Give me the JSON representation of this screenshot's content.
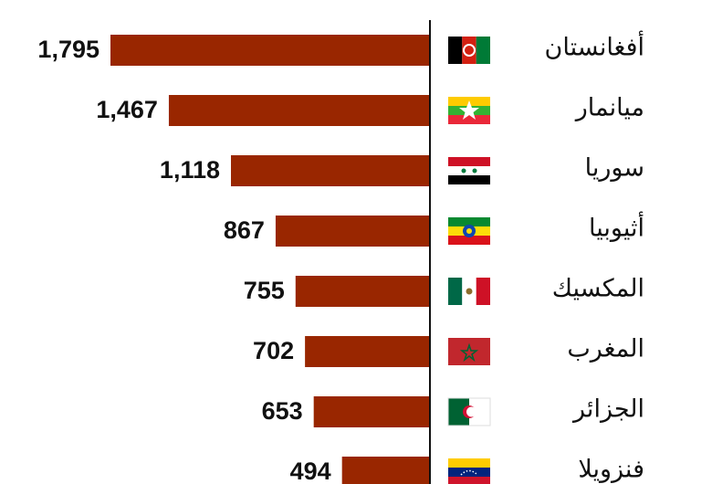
{
  "chart_data": {
    "type": "bar",
    "orientation": "horizontal",
    "categories": [
      "أفغانستان",
      "ميانمار",
      "سوريا",
      "أثيوبيا",
      "المكسيك",
      "المغرب",
      "الجزائر",
      "فنزويلا"
    ],
    "values": [
      1795,
      1467,
      1118,
      867,
      755,
      702,
      653,
      494
    ],
    "value_labels": [
      "1,795",
      "1,467",
      "1,118",
      "867",
      "755",
      "702",
      "653",
      "494"
    ],
    "color": "#992600"
  }
}
